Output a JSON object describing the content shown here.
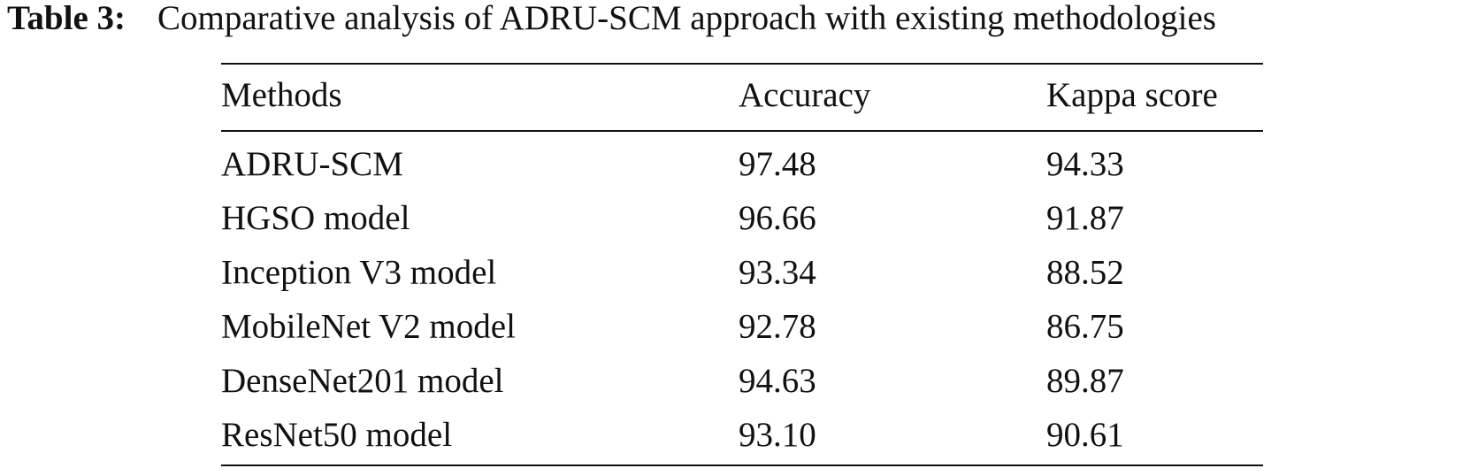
{
  "caption": {
    "label": "Table 3:",
    "text": "Comparative analysis of ADRU-SCM approach with existing methodologies"
  },
  "table": {
    "header": [
      "Methods",
      "Accuracy",
      "Kappa score"
    ],
    "rows": [
      [
        "ADRU-SCM",
        "97.48",
        "94.33"
      ],
      [
        "HGSO model",
        "96.66",
        "91.87"
      ],
      [
        "Inception V3 model",
        "93.34",
        "88.52"
      ],
      [
        "MobileNet V2 model",
        "92.78",
        "86.75"
      ],
      [
        "DenseNet201 model",
        "94.63",
        "89.87"
      ],
      [
        "ResNet50 model",
        "93.10",
        "90.61"
      ]
    ]
  }
}
